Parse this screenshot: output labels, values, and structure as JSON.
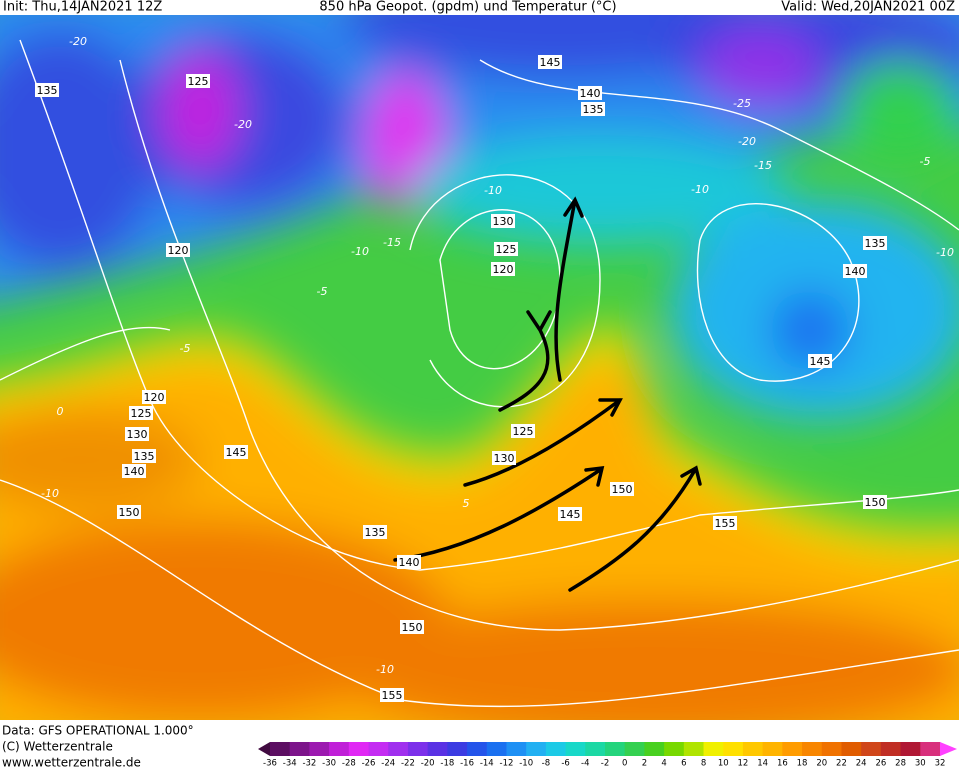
{
  "header": {
    "init": "Init: Thu,14JAN2021 12Z",
    "title": "850 hPa Geopot. (gpdm) und Temperatur (°C)",
    "valid": "Valid: Wed,20JAN2021 00Z"
  },
  "map": {
    "geopotential_labels": [
      135,
      125,
      145,
      140,
      135,
      120,
      130,
      125,
      120,
      135,
      140,
      145,
      120,
      125,
      130,
      135,
      140,
      145,
      125,
      130,
      150,
      145,
      150,
      135,
      140,
      155,
      150,
      150,
      155
    ],
    "temperature_labels": [
      -20,
      -20,
      -25,
      -20,
      -15,
      -10,
      -10,
      -15,
      -10,
      -5,
      -5,
      0,
      -10,
      5,
      -10,
      -5,
      -10
    ]
  },
  "colorbar": {
    "ticks": [
      -36,
      -34,
      -32,
      -30,
      -28,
      -26,
      -24,
      -22,
      -20,
      -18,
      -16,
      -14,
      -12,
      -10,
      -8,
      -6,
      -4,
      -2,
      0,
      2,
      4,
      6,
      8,
      10,
      12,
      14,
      16,
      18,
      20,
      22,
      24,
      26,
      28,
      30,
      32
    ],
    "colors": [
      "#400a40",
      "#5c0e62",
      "#7c148a",
      "#9c1ab0",
      "#c020d8",
      "#e028f4",
      "#c42cf2",
      "#a030ee",
      "#7c30ea",
      "#5a32e4",
      "#3c3ce2",
      "#2454ea",
      "#1a70f0",
      "#1e90f4",
      "#22b0f2",
      "#1ccae6",
      "#18d8c8",
      "#1cd8a4",
      "#24d47c",
      "#34d050",
      "#48d020",
      "#78d800",
      "#b0e400",
      "#f0f000",
      "#ffe000",
      "#ffc800",
      "#ffb400",
      "#ff9c00",
      "#f88600",
      "#f07200",
      "#e05c00",
      "#d0461a",
      "#c02e24",
      "#b01834",
      "#d8307c",
      "#ff40ff"
    ]
  },
  "footer": {
    "source": "Data: GFS OPERATIONAL 1.000°",
    "copyright": "(C) Wetterzentrale",
    "url": "www.wetterzentrale.de"
  }
}
